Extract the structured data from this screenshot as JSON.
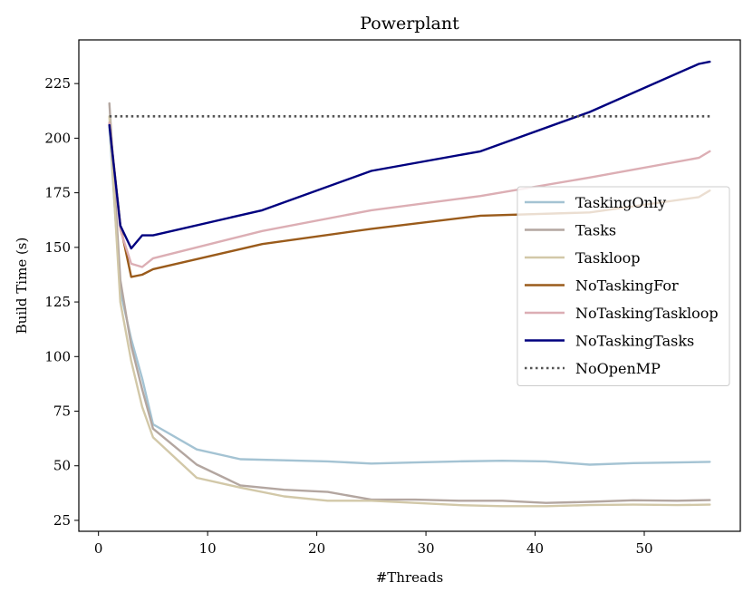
{
  "chart_data": {
    "type": "line",
    "title": "Powerplant",
    "xlabel": "#Threads",
    "ylabel": "Build Time (s)",
    "xlim": [
      -1.8,
      58.8
    ],
    "ylim": [
      20,
      245
    ],
    "xticks": [
      0,
      10,
      20,
      30,
      40,
      50
    ],
    "yticks": [
      25,
      50,
      75,
      100,
      125,
      150,
      175,
      200,
      225
    ],
    "legend_position": "center-right",
    "series": [
      {
        "name": "TaskingOnly",
        "color": "#a4c3d3",
        "style": "solid",
        "x": [
          1,
          2,
          3,
          4,
          5,
          9,
          13,
          21,
          25,
          29,
          33,
          37,
          41,
          45,
          49,
          53,
          56
        ],
        "y": [
          205,
          130,
          108,
          90,
          69,
          57.5,
          53,
          52,
          51,
          51.5,
          52,
          52.3,
          52,
          50.5,
          51.2,
          51.5,
          51.8
        ]
      },
      {
        "name": "Tasks",
        "color": "#b3a6a0",
        "style": "solid",
        "x": [
          1,
          2,
          3,
          4,
          5,
          9,
          13,
          17,
          21,
          25,
          29,
          33,
          37,
          41,
          45,
          49,
          53,
          56
        ],
        "y": [
          216,
          135,
          105,
          85,
          67,
          50.5,
          41,
          39,
          38,
          34.5,
          34.5,
          34,
          34,
          33,
          33.5,
          34.2,
          34,
          34.3
        ]
      },
      {
        "name": "Taskloop",
        "color": "#d2c8a8",
        "style": "solid",
        "x": [
          1,
          2,
          3,
          4,
          5,
          9,
          13,
          17,
          21,
          25,
          29,
          33,
          37,
          41,
          45,
          49,
          53,
          56
        ],
        "y": [
          210,
          125,
          98,
          77,
          63,
          44.5,
          40,
          36,
          34,
          34,
          33,
          32,
          31.5,
          31.5,
          32,
          32.2,
          32,
          32.2
        ]
      },
      {
        "name": "NoTaskingFor",
        "color": "#9a5b1b",
        "style": "solid",
        "x": [
          1,
          2,
          3,
          4,
          5,
          15,
          25,
          35,
          45,
          55,
          56
        ],
        "y": [
          207,
          160,
          136.5,
          137.5,
          140,
          151.5,
          158.5,
          164.5,
          166,
          173,
          176
        ]
      },
      {
        "name": "NoTaskingTaskloop",
        "color": "#dcaeb4",
        "style": "solid",
        "x": [
          1,
          2,
          3,
          4,
          5,
          15,
          25,
          35,
          45,
          55,
          56
        ],
        "y": [
          207,
          158,
          142.5,
          141,
          145,
          157.5,
          167,
          173.5,
          182,
          191,
          194
        ]
      },
      {
        "name": "NoTaskingTasks",
        "color": "#00007f",
        "style": "solid",
        "x": [
          1,
          2,
          3,
          4,
          5,
          15,
          25,
          35,
          45,
          55,
          56
        ],
        "y": [
          206,
          160,
          149.5,
          155.5,
          155.5,
          167,
          185,
          194,
          212,
          234,
          235
        ]
      },
      {
        "name": "NoOpenMP",
        "color": "#555555",
        "style": "dotted",
        "x": [
          1,
          56
        ],
        "y": [
          210,
          210
        ]
      }
    ]
  }
}
